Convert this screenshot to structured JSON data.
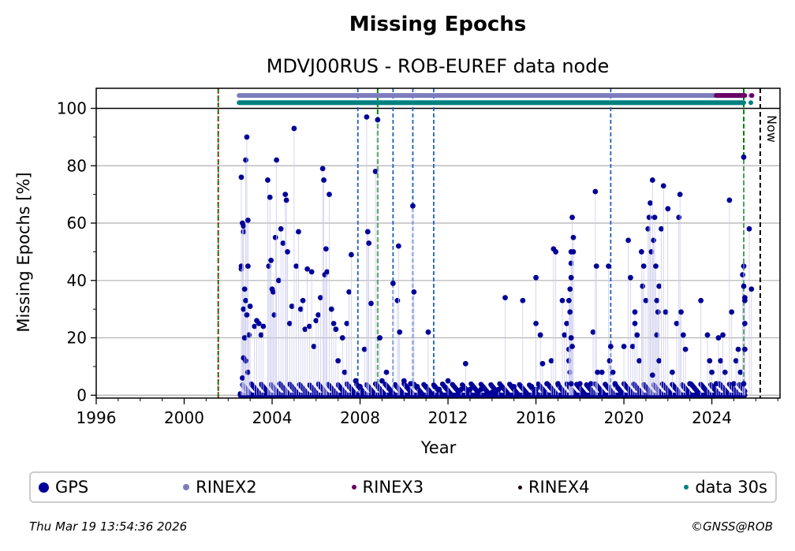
{
  "chart_data": {
    "type": "scatter",
    "title": "Missing Epochs",
    "subtitle": "MDVJ00RUS - ROB-EUREF data node",
    "xlabel": "Year",
    "ylabel": "Missing Epochs [%]",
    "xlim": [
      1996,
      2027.1
    ],
    "ylim": [
      -1,
      107
    ],
    "x_ticks": [
      "1996",
      "2000",
      "2004",
      "2008",
      "2012",
      "2016",
      "2020",
      "2024"
    ],
    "y_ticks": [
      "0",
      "20",
      "40",
      "60",
      "80",
      "100"
    ],
    "grid": "y",
    "legend_position": "bottom",
    "now_label": "Now",
    "now_year": 2026.2,
    "green_lines": [
      2001.55,
      2008.8,
      2025.45
    ],
    "red_lines": [
      2001.55
    ],
    "blue_lines": [
      2007.9,
      2009.5,
      2010.4,
      2011.35,
      2019.4
    ],
    "availability_bars": [
      {
        "name": "RINEX2",
        "y": 104.5,
        "start": 2002.5,
        "end": 2025.45,
        "color": "#7b7bbd"
      },
      {
        "name": "RINEX3",
        "y": 104.5,
        "start": 2024.2,
        "end": 2025.5,
        "color": "#6a0066"
      },
      {
        "name": "data 30s",
        "y": 102,
        "start": 2002.5,
        "end": 2025.45,
        "color": "#008080"
      }
    ],
    "series": [
      {
        "name": "GPS",
        "color": "#000099",
        "points": [
          [
            2002.6,
            76
          ],
          [
            2002.6,
            44
          ],
          [
            2002.6,
            45
          ],
          [
            2002.7,
            57
          ],
          [
            2002.65,
            60
          ],
          [
            2002.7,
            59
          ],
          [
            2002.8,
            82
          ],
          [
            2002.85,
            90
          ],
          [
            2002.9,
            61
          ],
          [
            2002.75,
            37
          ],
          [
            2002.7,
            30
          ],
          [
            2002.8,
            33
          ],
          [
            2002.9,
            45
          ],
          [
            2002.95,
            21
          ],
          [
            2002.7,
            13
          ],
          [
            2002.8,
            12
          ],
          [
            2002.65,
            6
          ],
          [
            2002.9,
            8
          ],
          [
            2002.75,
            20
          ],
          [
            2002.85,
            28
          ],
          [
            2003.0,
            31
          ],
          [
            2003.2,
            24
          ],
          [
            2003.3,
            26
          ],
          [
            2003.4,
            25
          ],
          [
            2003.5,
            21
          ],
          [
            2003.6,
            24
          ],
          [
            2003.8,
            75
          ],
          [
            2003.85,
            45
          ],
          [
            2003.9,
            69
          ],
          [
            2003.95,
            47
          ],
          [
            2004.0,
            37
          ],
          [
            2004.05,
            36
          ],
          [
            2004.1,
            28
          ],
          [
            2004.15,
            55
          ],
          [
            2004.2,
            82
          ],
          [
            2004.3,
            40
          ],
          [
            2004.4,
            58
          ],
          [
            2004.5,
            53
          ],
          [
            2004.6,
            70
          ],
          [
            2004.65,
            68
          ],
          [
            2004.7,
            50
          ],
          [
            2004.8,
            25
          ],
          [
            2004.9,
            31
          ],
          [
            2005.0,
            93
          ],
          [
            2005.1,
            45
          ],
          [
            2005.2,
            57
          ],
          [
            2005.3,
            30
          ],
          [
            2005.4,
            33
          ],
          [
            2005.5,
            23
          ],
          [
            2005.6,
            44
          ],
          [
            2005.7,
            24
          ],
          [
            2005.8,
            43
          ],
          [
            2005.9,
            17
          ],
          [
            2006.0,
            26
          ],
          [
            2006.1,
            28
          ],
          [
            2006.2,
            34
          ],
          [
            2006.3,
            79
          ],
          [
            2006.35,
            75
          ],
          [
            2006.4,
            42
          ],
          [
            2006.45,
            51
          ],
          [
            2006.5,
            43
          ],
          [
            2006.6,
            70
          ],
          [
            2006.7,
            30
          ],
          [
            2006.8,
            25
          ],
          [
            2006.9,
            23
          ],
          [
            2007.0,
            12
          ],
          [
            2007.2,
            20
          ],
          [
            2007.3,
            8
          ],
          [
            2007.4,
            25
          ],
          [
            2007.5,
            36
          ],
          [
            2007.6,
            49
          ],
          [
            2007.8,
            5
          ],
          [
            2008.0,
            3
          ],
          [
            2008.2,
            16
          ],
          [
            2008.3,
            97
          ],
          [
            2008.35,
            57
          ],
          [
            2008.4,
            53
          ],
          [
            2008.5,
            32
          ],
          [
            2008.7,
            78
          ],
          [
            2008.8,
            96
          ],
          [
            2008.9,
            20
          ],
          [
            2009.0,
            5
          ],
          [
            2009.2,
            8
          ],
          [
            2009.5,
            39
          ],
          [
            2009.7,
            33
          ],
          [
            2009.75,
            52
          ],
          [
            2009.8,
            22
          ],
          [
            2010.0,
            5
          ],
          [
            2010.3,
            4
          ],
          [
            2010.4,
            66
          ],
          [
            2010.45,
            36
          ],
          [
            2010.6,
            3
          ],
          [
            2011.0,
            3
          ],
          [
            2011.1,
            22
          ],
          [
            2011.4,
            3
          ],
          [
            2011.6,
            2
          ],
          [
            2012.0,
            5
          ],
          [
            2012.6,
            2
          ],
          [
            2012.8,
            11
          ],
          [
            2013.0,
            2
          ],
          [
            2013.5,
            2
          ],
          [
            2014.0,
            1
          ],
          [
            2014.3,
            2
          ],
          [
            2014.6,
            34
          ],
          [
            2015.0,
            3
          ],
          [
            2015.4,
            33
          ],
          [
            2015.8,
            3
          ],
          [
            2016.0,
            2
          ],
          [
            2016.0,
            41
          ],
          [
            2016.0,
            25
          ],
          [
            2016.2,
            21
          ],
          [
            2016.3,
            11
          ],
          [
            2016.5,
            4
          ],
          [
            2016.7,
            12
          ],
          [
            2016.8,
            51
          ],
          [
            2016.9,
            50
          ],
          [
            2017.0,
            4
          ],
          [
            2017.2,
            33
          ],
          [
            2017.3,
            21
          ],
          [
            2017.4,
            25
          ],
          [
            2017.5,
            16
          ],
          [
            2017.5,
            12
          ],
          [
            2017.55,
            8
          ],
          [
            2017.6,
            50
          ],
          [
            2017.6,
            46
          ],
          [
            2017.65,
            62
          ],
          [
            2017.7,
            55
          ],
          [
            2017.7,
            50
          ],
          [
            2017.6,
            41
          ],
          [
            2017.55,
            37
          ],
          [
            2017.5,
            33
          ],
          [
            2017.55,
            29
          ],
          [
            2017.6,
            20
          ],
          [
            2017.65,
            17
          ],
          [
            2017.6,
            4
          ],
          [
            2018.0,
            4
          ],
          [
            2018.5,
            4
          ],
          [
            2018.6,
            22
          ],
          [
            2018.7,
            71
          ],
          [
            2018.75,
            45
          ],
          [
            2018.8,
            8
          ],
          [
            2019.0,
            8
          ],
          [
            2019.3,
            45
          ],
          [
            2019.35,
            12
          ],
          [
            2019.4,
            17
          ],
          [
            2019.5,
            8
          ],
          [
            2019.6,
            4
          ],
          [
            2020.0,
            17
          ],
          [
            2020.2,
            54
          ],
          [
            2020.3,
            41
          ],
          [
            2020.4,
            17
          ],
          [
            2020.5,
            29
          ],
          [
            2020.5,
            25
          ],
          [
            2020.6,
            21
          ],
          [
            2020.7,
            12
          ],
          [
            2020.8,
            50
          ],
          [
            2020.85,
            38
          ],
          [
            2020.9,
            45
          ],
          [
            2021.0,
            33
          ],
          [
            2021.1,
            58
          ],
          [
            2021.15,
            62
          ],
          [
            2021.2,
            67
          ],
          [
            2021.25,
            50
          ],
          [
            2021.3,
            75
          ],
          [
            2021.35,
            54
          ],
          [
            2021.4,
            62
          ],
          [
            2021.45,
            45
          ],
          [
            2021.5,
            33
          ],
          [
            2021.5,
            21
          ],
          [
            2021.55,
            29
          ],
          [
            2021.6,
            38
          ],
          [
            2021.6,
            12
          ],
          [
            2021.3,
            7
          ],
          [
            2021.7,
            58
          ],
          [
            2021.8,
            73
          ],
          [
            2021.9,
            29
          ],
          [
            2022.0,
            65
          ],
          [
            2022.2,
            8
          ],
          [
            2022.4,
            25
          ],
          [
            2022.5,
            62
          ],
          [
            2022.55,
            70
          ],
          [
            2022.6,
            29
          ],
          [
            2022.7,
            21
          ],
          [
            2022.8,
            16
          ],
          [
            2023.0,
            4
          ],
          [
            2023.5,
            33
          ],
          [
            2023.8,
            21
          ],
          [
            2023.9,
            12
          ],
          [
            2024.0,
            8
          ],
          [
            2024.2,
            4
          ],
          [
            2024.3,
            20
          ],
          [
            2024.4,
            12
          ],
          [
            2024.5,
            21
          ],
          [
            2024.6,
            8
          ],
          [
            2024.8,
            68
          ],
          [
            2024.9,
            29
          ],
          [
            2025.0,
            4
          ],
          [
            2025.1,
            12
          ],
          [
            2025.2,
            16
          ],
          [
            2025.3,
            8
          ],
          [
            2025.4,
            42
          ],
          [
            2025.45,
            45
          ],
          [
            2025.45,
            83
          ],
          [
            2025.45,
            38
          ],
          [
            2025.5,
            34
          ],
          [
            2025.5,
            33
          ],
          [
            2025.5,
            25
          ],
          [
            2025.5,
            16
          ],
          [
            2025.45,
            4
          ],
          [
            2025.7,
            58
          ],
          [
            2025.8,
            37
          ]
        ]
      }
    ],
    "legend": [
      {
        "label": "GPS",
        "color": "#000099"
      },
      {
        "label": "RINEX2",
        "color": "#7b7bbd"
      },
      {
        "label": "RINEX3",
        "color": "#6a0066"
      },
      {
        "label": "RINEX4",
        "color": "#1a0010"
      },
      {
        "label": "data 30s",
        "color": "#008080"
      }
    ]
  },
  "footer": {
    "timestamp": "Thu Mar 19 13:54:36 2026",
    "copyright": "©GNSS@ROB"
  }
}
